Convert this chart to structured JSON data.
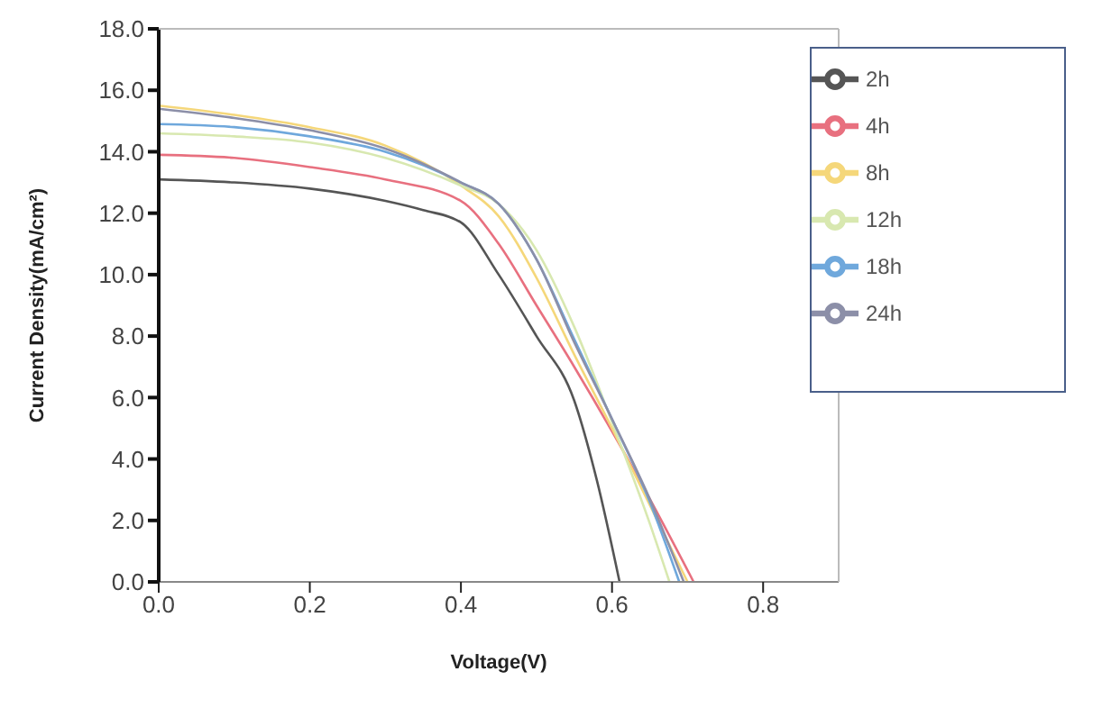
{
  "chart_data": {
    "type": "line",
    "xlabel": "Voltage(V)",
    "ylabel": "Current Density(mA/cm²)",
    "xlim": [
      0,
      0.9
    ],
    "xticks": [
      {
        "value": 0,
        "label": "0.0"
      },
      {
        "value": 0.2,
        "label": "0.2"
      },
      {
        "value": 0.4,
        "label": "0.4"
      },
      {
        "value": 0.6,
        "label": "0.6"
      },
      {
        "value": 0.8,
        "label": "0.8"
      }
    ],
    "ylim": [
      0,
      18
    ],
    "yticks": [
      {
        "value": 0,
        "label": "0.0"
      },
      {
        "value": 2,
        "label": "2.0"
      },
      {
        "value": 4,
        "label": "4.0"
      },
      {
        "value": 6,
        "label": "6.0"
      },
      {
        "value": 8,
        "label": "8.0"
      },
      {
        "value": 10,
        "label": "10.0"
      },
      {
        "value": 12,
        "label": "12.0"
      },
      {
        "value": 14,
        "label": "14.0"
      },
      {
        "value": 16,
        "label": "16.0"
      },
      {
        "value": 18,
        "label": "18.0"
      }
    ],
    "grid": false,
    "legend": "top right",
    "marker": "none",
    "line_style": "solid",
    "series": [
      {
        "name": "2h",
        "color": "#555555",
        "x": [
          0,
          0.1,
          0.2,
          0.3,
          0.35,
          0.4,
          0.45,
          0.5,
          0.55,
          0.58,
          0.61
        ],
        "values": [
          13.1,
          13.0,
          12.8,
          12.4,
          12.1,
          11.7,
          10.0,
          8.0,
          5.9,
          3.3,
          0
        ]
      },
      {
        "name": "4h",
        "color": "#e8707f",
        "x": [
          0,
          0.1,
          0.2,
          0.3,
          0.4,
          0.45,
          0.5,
          0.55,
          0.6,
          0.65,
          0.708
        ],
        "values": [
          13.9,
          13.8,
          13.5,
          13.1,
          12.4,
          11.0,
          9.0,
          7.0,
          4.9,
          2.7,
          0
        ]
      },
      {
        "name": "8h",
        "color": "#f5d77a",
        "x": [
          0,
          0.1,
          0.2,
          0.3,
          0.4,
          0.45,
          0.5,
          0.55,
          0.6,
          0.65,
          0.7
        ],
        "values": [
          15.5,
          15.2,
          14.8,
          14.2,
          12.9,
          11.9,
          9.9,
          7.4,
          5.0,
          2.5,
          0
        ]
      },
      {
        "name": "12h",
        "color": "#d8e8b0",
        "x": [
          0,
          0.1,
          0.2,
          0.3,
          0.4,
          0.45,
          0.5,
          0.55,
          0.6,
          0.65,
          0.676
        ],
        "values": [
          14.6,
          14.5,
          14.3,
          13.8,
          12.9,
          12.3,
          10.8,
          8.3,
          5.2,
          1.9,
          0
        ]
      },
      {
        "name": "18h",
        "color": "#6fa8dc",
        "x": [
          0,
          0.1,
          0.2,
          0.3,
          0.4,
          0.45,
          0.5,
          0.55,
          0.6,
          0.65,
          0.689
        ],
        "values": [
          14.9,
          14.8,
          14.5,
          14.0,
          13.0,
          12.3,
          10.5,
          7.9,
          5.3,
          2.6,
          0
        ]
      },
      {
        "name": "24h",
        "color": "#8c8fa8",
        "x": [
          0,
          0.1,
          0.2,
          0.3,
          0.4,
          0.45,
          0.5,
          0.55,
          0.6,
          0.65,
          0.695
        ],
        "values": [
          15.4,
          15.1,
          14.7,
          14.1,
          13.0,
          12.3,
          10.5,
          7.8,
          5.3,
          2.7,
          0
        ]
      }
    ]
  }
}
